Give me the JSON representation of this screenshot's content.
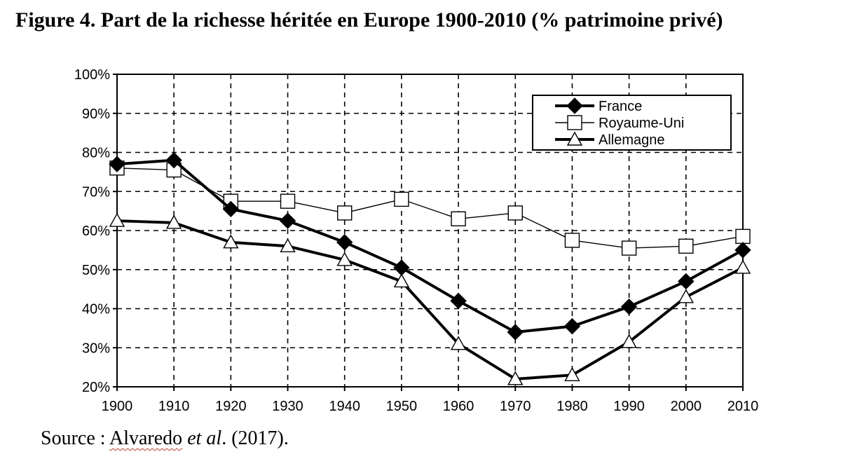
{
  "title": "Figure 4. Part de la richesse héritée en Europe 1900-2010 (% patrimoine privé)",
  "source": {
    "prefix": "Source : ",
    "author": "Alvaredo",
    "etal": "et al",
    "suffix": ". (2017)."
  },
  "chart_data": {
    "type": "line",
    "title": "Figure 4. Part de la richesse héritée en Europe 1900-2010 (% patrimoine privé)",
    "xlabel": "",
    "ylabel": "",
    "x": [
      1900,
      1910,
      1920,
      1930,
      1940,
      1950,
      1960,
      1970,
      1980,
      1990,
      2000,
      2010
    ],
    "ylim": [
      20,
      100
    ],
    "xlim": [
      1900,
      2010
    ],
    "y_tick_labels": [
      "20%",
      "30%",
      "40%",
      "50%",
      "60%",
      "70%",
      "80%",
      "90%",
      "100%"
    ],
    "x_tick_labels": [
      "1900",
      "1910",
      "1920",
      "1930",
      "1940",
      "1950",
      "1960",
      "1970",
      "1980",
      "1990",
      "2000",
      "2010"
    ],
    "grid": "dashed",
    "legend_position": "top-right",
    "series": [
      {
        "name": "France",
        "marker": "diamond-filled",
        "line": "thick",
        "color": "#000000",
        "values": [
          77,
          78,
          65.5,
          62.5,
          57,
          50.5,
          42,
          34,
          35.5,
          40.5,
          47,
          55
        ]
      },
      {
        "name": "Royaume-Uni",
        "marker": "square-open",
        "line": "thin",
        "color": "#000000",
        "values": [
          76,
          75.5,
          67.5,
          67.5,
          64.5,
          68,
          63,
          64.5,
          57.5,
          55.5,
          56,
          58.5
        ]
      },
      {
        "name": "Allemagne",
        "marker": "triangle-open",
        "line": "thick",
        "color": "#000000",
        "values": [
          62.5,
          62,
          57,
          56,
          52.5,
          47,
          31,
          22,
          23,
          31.5,
          43,
          50.5
        ]
      }
    ]
  }
}
